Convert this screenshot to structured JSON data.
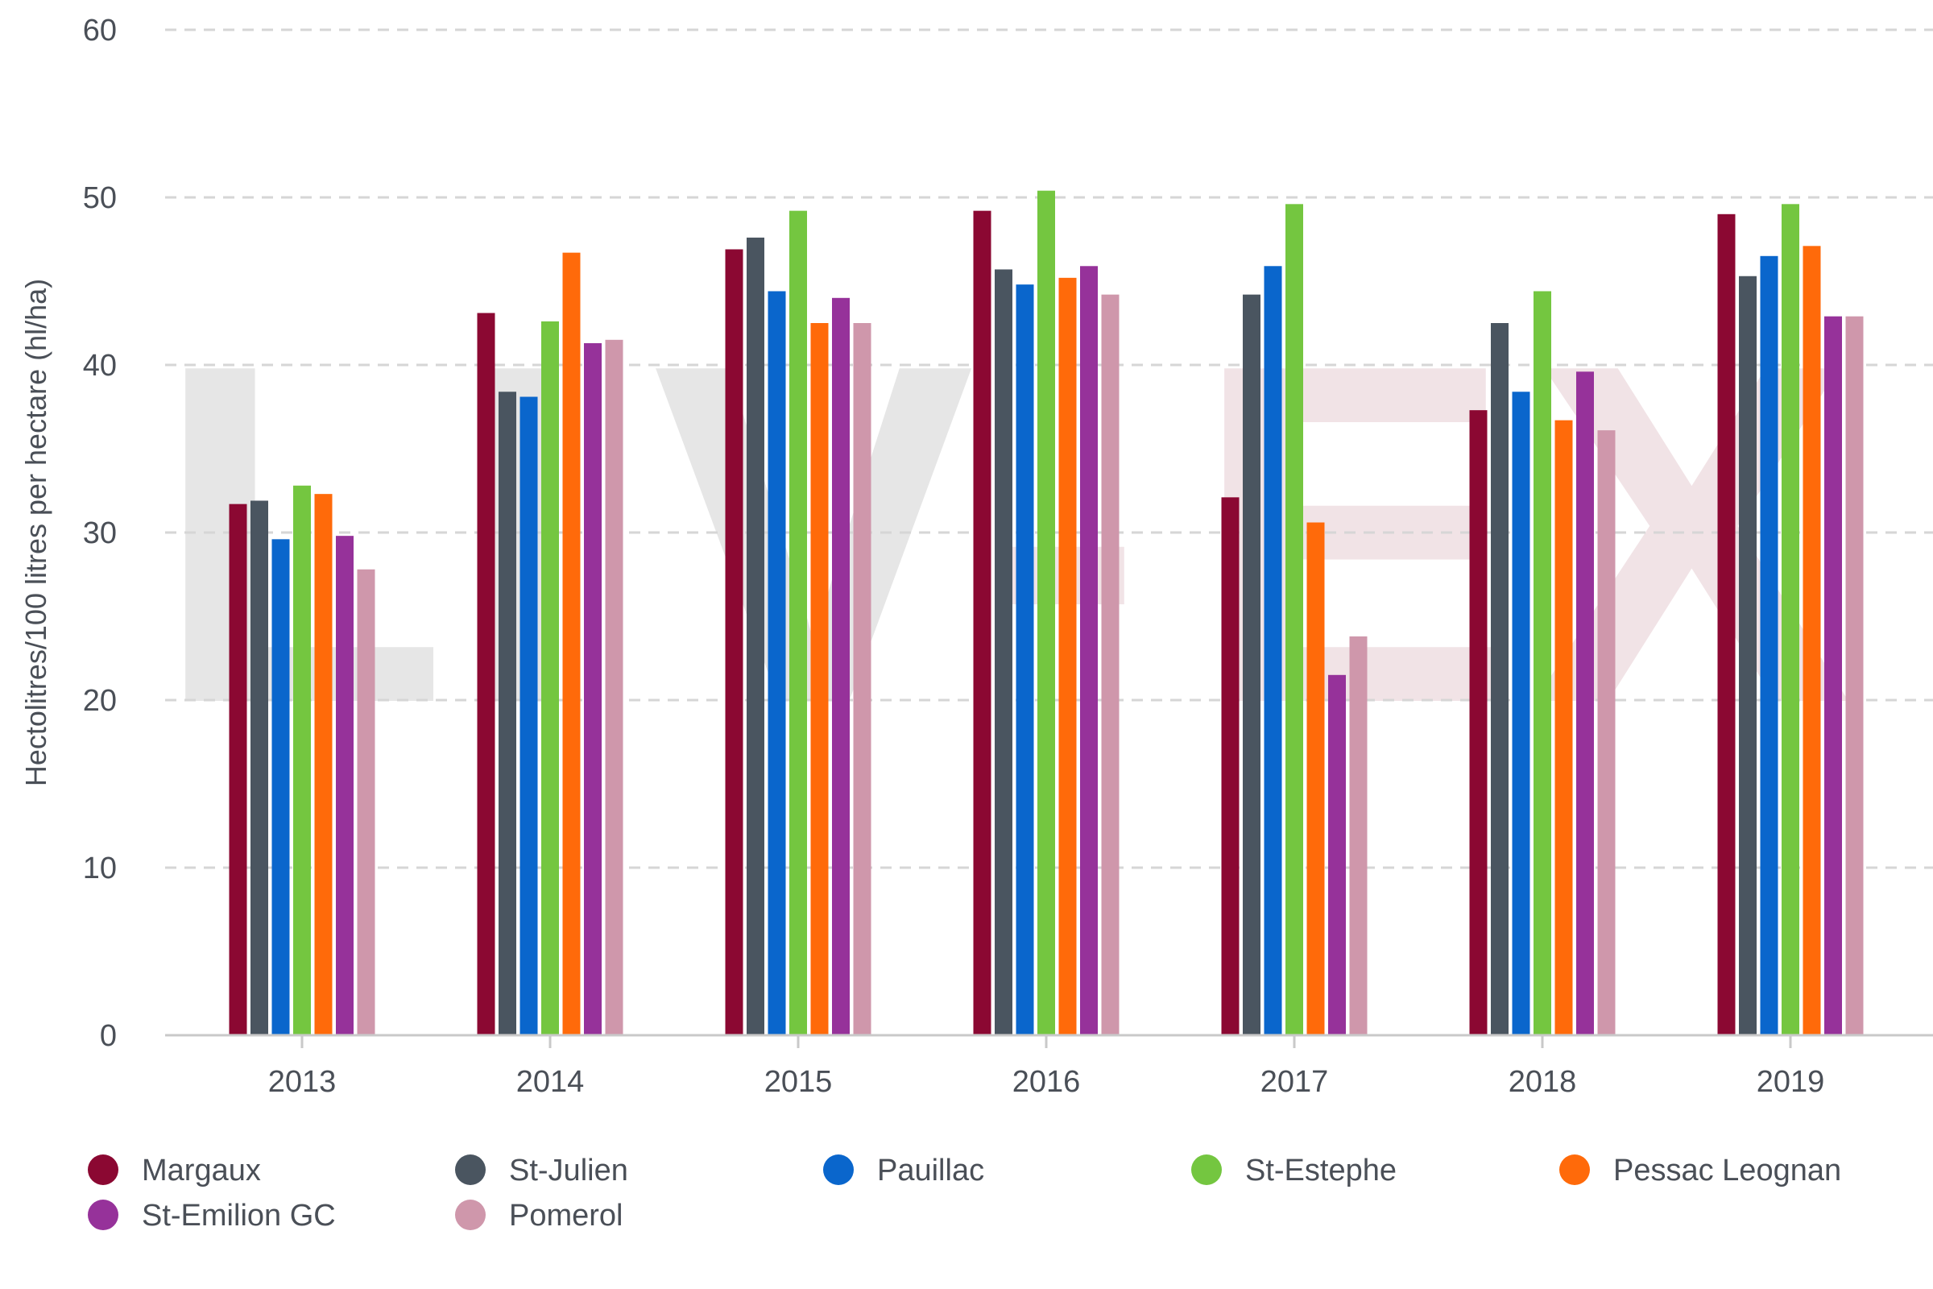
{
  "chart_data": {
    "type": "bar",
    "watermark": "LIV-EX",
    "ylabel": "Hectolitres/100 litres per hectare (hl/ha)",
    "xlabel": "",
    "ylim": [
      0,
      60
    ],
    "yticks": [
      0,
      10,
      20,
      30,
      40,
      50,
      60
    ],
    "grid": true,
    "legend_position": "bottom",
    "categories": [
      "2013",
      "2014",
      "2015",
      "2016",
      "2017",
      "2018",
      "2019"
    ],
    "series": [
      {
        "name": "Margaux",
        "color": "#8b0832",
        "values": [
          31.7,
          43.1,
          46.9,
          49.2,
          32.1,
          37.3,
          49.0
        ]
      },
      {
        "name": "St-Julien",
        "color": "#4a5560",
        "values": [
          31.9,
          38.4,
          47.6,
          45.7,
          44.2,
          42.5,
          45.3
        ]
      },
      {
        "name": "Pauillac",
        "color": "#0a66cc",
        "values": [
          29.6,
          38.1,
          44.4,
          44.8,
          45.9,
          38.4,
          46.5
        ]
      },
      {
        "name": "St-Estephe",
        "color": "#74c640",
        "values": [
          32.8,
          42.6,
          49.2,
          50.4,
          49.6,
          44.4,
          49.6
        ]
      },
      {
        "name": "Pessac Leognan",
        "color": "#ff6a0a",
        "values": [
          32.3,
          46.7,
          42.5,
          45.2,
          30.6,
          36.7,
          47.1
        ]
      },
      {
        "name": "St-Emilion GC",
        "color": "#96329a",
        "values": [
          29.8,
          41.3,
          44.0,
          45.9,
          21.5,
          39.6,
          42.9
        ]
      },
      {
        "name": "Pomerol",
        "color": "#cf97ab",
        "values": [
          27.8,
          41.5,
          42.5,
          44.2,
          23.8,
          36.1,
          42.9
        ]
      }
    ]
  }
}
